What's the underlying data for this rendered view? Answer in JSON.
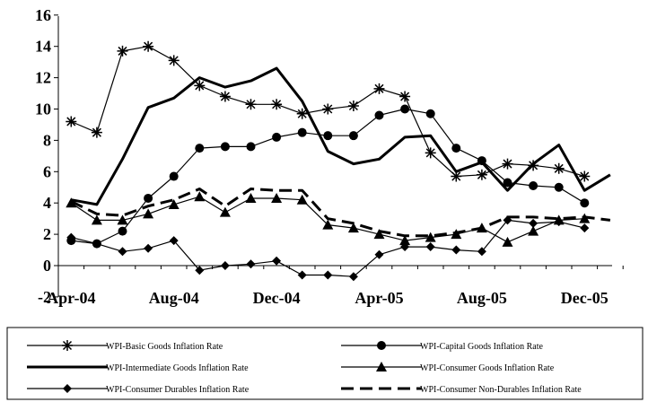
{
  "chart_data": {
    "type": "line",
    "ylim": [
      -2,
      16
    ],
    "yticks": [
      "-2",
      "0",
      "2",
      "4",
      "6",
      "8",
      "10",
      "12",
      "14",
      "16"
    ],
    "x_count": 22,
    "xticks": [
      {
        "index": 0,
        "label": "Apr-04"
      },
      {
        "index": 4,
        "label": "Aug-04"
      },
      {
        "index": 8,
        "label": "Dec-04"
      },
      {
        "index": 12,
        "label": "Apr-05"
      },
      {
        "index": 16,
        "label": "Aug-05"
      },
      {
        "index": 20,
        "label": "Dec-05"
      }
    ],
    "grid": false,
    "legend_position": "bottom",
    "series": [
      {
        "name": "WPI-Basic Goods Inflation Rate",
        "color": "#000000",
        "stroke_width": 1.2,
        "dash": "",
        "marker": "asterisk",
        "values": [
          9.2,
          8.5,
          13.7,
          14.0,
          13.1,
          11.5,
          10.8,
          10.3,
          10.3,
          9.7,
          10.0,
          10.2,
          11.3,
          10.8,
          7.2,
          5.7,
          5.8,
          6.5,
          6.4,
          6.2,
          5.7
        ]
      },
      {
        "name": "WPI-Capital Goods Inflation Rate",
        "color": "#000000",
        "stroke_width": 1.2,
        "dash": "",
        "marker": "circle",
        "values": [
          1.6,
          1.4,
          2.2,
          4.3,
          5.7,
          7.5,
          7.6,
          7.6,
          8.2,
          8.5,
          8.3,
          8.3,
          9.6,
          10.0,
          9.7,
          7.5,
          6.7,
          5.3,
          5.1,
          5.0,
          4.0
        ]
      },
      {
        "name": "WPI-Intermediate Goods Inflation Rate",
        "color": "#000000",
        "stroke_width": 3,
        "dash": "",
        "marker": "none",
        "values": [
          4.2,
          3.9,
          6.8,
          10.1,
          10.7,
          12.0,
          11.4,
          11.8,
          12.6,
          10.5,
          7.3,
          6.5,
          6.8,
          8.2,
          8.3,
          6.0,
          6.6,
          4.8,
          6.5,
          7.7,
          4.8,
          5.8
        ]
      },
      {
        "name": "WPI-Consumer Goods Inflation Rate",
        "color": "#000000",
        "stroke_width": 1.2,
        "dash": "",
        "marker": "triangle",
        "values": [
          4.0,
          2.9,
          2.9,
          3.3,
          3.9,
          4.4,
          3.4,
          4.3,
          4.3,
          4.2,
          2.6,
          2.4,
          2.0,
          1.6,
          1.8,
          2.0,
          2.4,
          1.5,
          2.2,
          2.9,
          3.0
        ]
      },
      {
        "name": "WPI-Consumer Durables Inflation Rate",
        "color": "#000000",
        "stroke_width": 1.2,
        "dash": "",
        "marker": "diamond",
        "values": [
          1.8,
          1.4,
          0.9,
          1.1,
          1.6,
          -0.3,
          0.0,
          0.1,
          0.3,
          -0.6,
          -0.6,
          -0.7,
          0.7,
          1.2,
          1.2,
          1.0,
          0.9,
          2.9,
          2.7,
          2.8,
          2.4
        ]
      },
      {
        "name": "WPI-Consumer Non-Durables Inflation Rate",
        "color": "#000000",
        "stroke_width": 3,
        "dash": "14 7",
        "marker": "none",
        "values": [
          4.1,
          3.3,
          3.2,
          3.8,
          4.2,
          4.9,
          3.8,
          4.9,
          4.8,
          4.8,
          3.0,
          2.7,
          2.2,
          1.9,
          1.9,
          2.1,
          2.4,
          3.1,
          3.1,
          3.0,
          3.1,
          2.9
        ]
      }
    ]
  }
}
